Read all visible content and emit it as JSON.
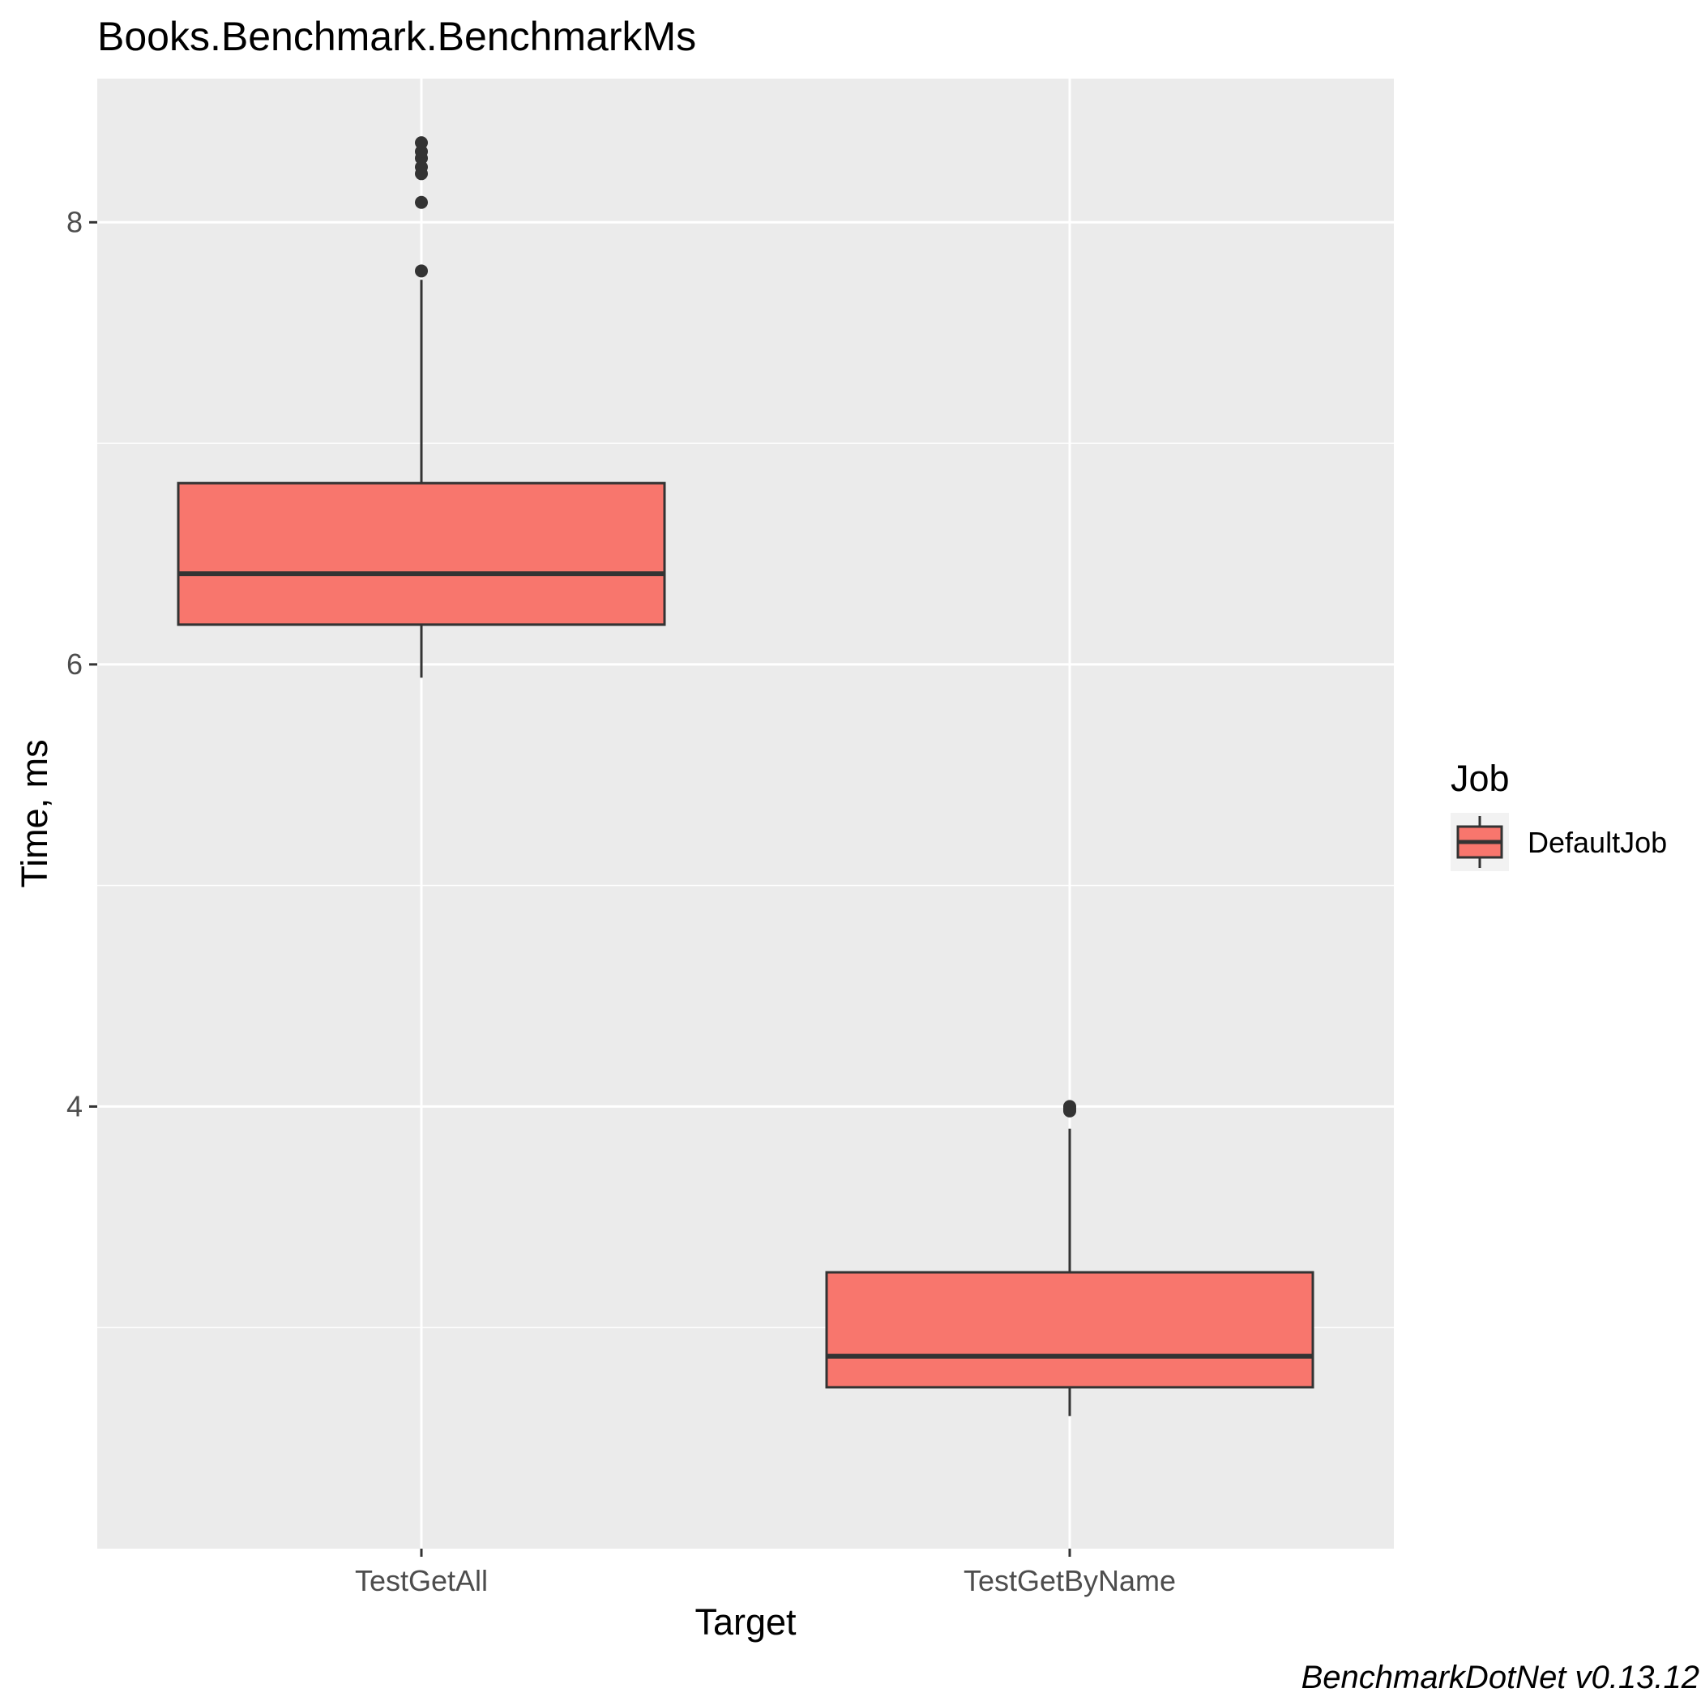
{
  "chart_data": {
    "type": "box",
    "title": "Books.Benchmark.BenchmarkMs",
    "xlabel": "Target",
    "ylabel": "Time, ms",
    "categories": [
      "TestGetAll",
      "TestGetByName"
    ],
    "ylim": [
      2.0,
      8.65
    ],
    "yticks": [
      4,
      6,
      8
    ],
    "y_minor_ticks": [
      3,
      5,
      7
    ],
    "grid": true,
    "series": [
      {
        "name": "DefaultJob",
        "color": "#F8766D",
        "boxes": [
          {
            "category": "TestGetAll",
            "whisker_low": 5.94,
            "q1": 6.18,
            "median": 6.41,
            "q3": 6.82,
            "whisker_high": 7.74,
            "outliers": [
              7.78,
              8.09,
              8.22,
              8.25,
              8.29,
              8.32,
              8.36
            ]
          },
          {
            "category": "TestGetByName",
            "whisker_low": 2.6,
            "q1": 2.73,
            "median": 2.87,
            "q3": 3.25,
            "whisker_high": 3.9,
            "outliers": [
              3.98,
              3.99,
              4.0
            ]
          }
        ]
      }
    ],
    "legend": {
      "title": "Job",
      "position": "right",
      "entries": [
        "DefaultJob"
      ]
    },
    "caption": "BenchmarkDotNet v0.13.12"
  }
}
